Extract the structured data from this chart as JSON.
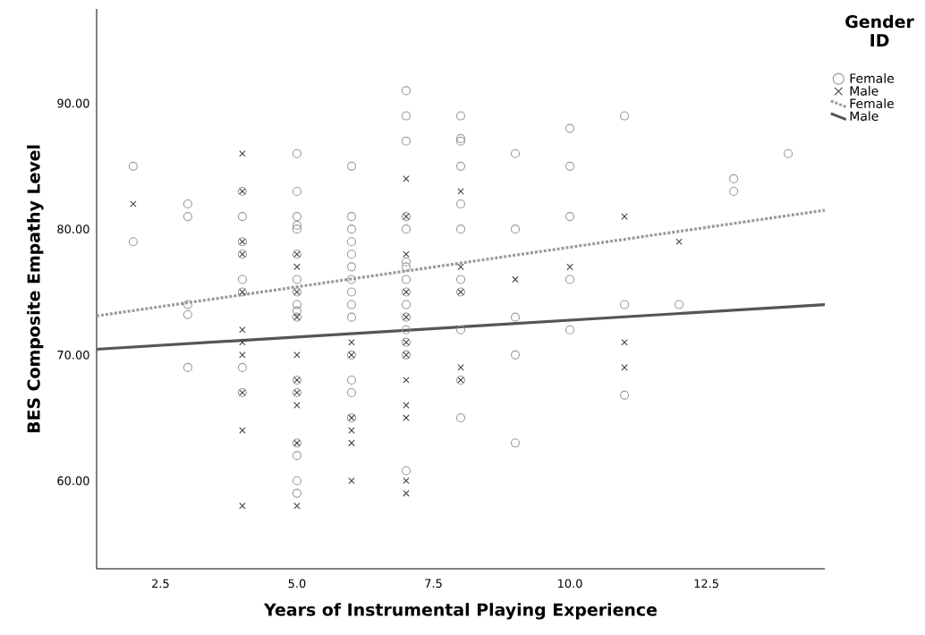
{
  "chart_data": {
    "type": "scatter",
    "xlabel": "Years of Instrumental Playing Experience",
    "ylabel": "BES Composite Empathy Level",
    "legend_title": "Gender ID",
    "legend": "top right",
    "xlim": [
      1.33,
      14.67
    ],
    "ylim": [
      53,
      97.5
    ],
    "xticks": [
      {
        "value": 2.5,
        "label": "2.5"
      },
      {
        "value": 5,
        "label": "5.0"
      },
      {
        "value": 7.5,
        "label": "7.5"
      },
      {
        "value": 10,
        "label": "10.0"
      },
      {
        "value": 12.5,
        "label": "12.5"
      }
    ],
    "yticks": [
      {
        "value": 60,
        "label": "60.00"
      },
      {
        "value": 70,
        "label": "70.00"
      },
      {
        "value": 80,
        "label": "80.00"
      },
      {
        "value": 90,
        "label": "90.00"
      }
    ],
    "series": [
      {
        "name": "Female",
        "marker": "circle",
        "color": "#999999",
        "x": [
          2,
          2,
          3,
          3,
          3,
          3,
          3,
          4,
          4,
          4,
          4,
          4,
          4,
          4,
          4,
          5,
          5,
          5,
          5,
          5,
          5,
          5,
          5,
          5,
          5,
          5,
          5,
          5,
          5,
          5,
          5,
          5,
          6,
          6,
          6,
          6,
          6,
          6,
          6,
          6,
          6,
          6,
          6,
          6,
          6,
          6,
          7,
          7,
          7,
          7,
          7,
          7,
          7,
          7,
          7,
          7,
          7,
          7,
          7,
          7,
          7,
          8,
          8,
          8,
          8,
          8,
          8,
          8,
          8,
          8,
          8,
          8,
          9,
          9,
          9,
          9,
          9,
          10,
          10,
          10,
          10,
          10,
          11,
          11,
          11,
          12,
          13,
          13,
          14
        ],
        "values": [
          85,
          79,
          82,
          81,
          74,
          73.2,
          69,
          83,
          81,
          79,
          78,
          76,
          75,
          69,
          67,
          86,
          83,
          81,
          80.3,
          80,
          78,
          76,
          75,
          74,
          73.5,
          73,
          68,
          67,
          63,
          62,
          60,
          59,
          85,
          81,
          80,
          79,
          78,
          77,
          76,
          75,
          74,
          73,
          70,
          68,
          67,
          65,
          91,
          89,
          87,
          81,
          80,
          77.4,
          77,
          76,
          75,
          74,
          73,
          72,
          71,
          70,
          60.8,
          89,
          87.2,
          87,
          85,
          82,
          80,
          76,
          75,
          72,
          68,
          65,
          86,
          80,
          73,
          70,
          63,
          88,
          85,
          81,
          76,
          72,
          89,
          74,
          66.8,
          74,
          84,
          83,
          86
        ]
      },
      {
        "name": "Male",
        "marker": "cross",
        "color": "#444444",
        "x": [
          2,
          4,
          4,
          4,
          4,
          4,
          4,
          4,
          4,
          4,
          4,
          4,
          5,
          5,
          5,
          5,
          5,
          5,
          5,
          5,
          5,
          5,
          6,
          6,
          6,
          6,
          6,
          6,
          7,
          7,
          7,
          7,
          7,
          7,
          7,
          7,
          7,
          7,
          7,
          7,
          8,
          8,
          8,
          8,
          8,
          9,
          10,
          11,
          11,
          11,
          12
        ],
        "values": [
          82,
          86,
          83,
          79,
          78,
          75,
          72,
          71,
          70,
          67,
          64,
          58,
          78,
          77,
          75,
          73,
          70,
          68,
          67,
          66,
          63,
          58,
          71,
          70,
          65,
          64,
          63,
          60,
          84,
          81,
          78,
          75,
          73,
          71,
          70,
          68,
          66,
          65,
          60,
          59,
          83,
          77,
          75,
          69,
          68,
          76,
          77,
          81,
          71,
          69,
          79
        ]
      },
      {
        "name": "Female",
        "type": "line",
        "line_style": "dotted",
        "color": "#999999",
        "x": [
          1.33,
          14.67
        ],
        "values": [
          73.1,
          81.5
        ]
      },
      {
        "name": "Male",
        "type": "line",
        "line_style": "solid",
        "color": "#555555",
        "x": [
          1.33,
          14.67
        ],
        "values": [
          70.45,
          74.0
        ]
      }
    ]
  }
}
